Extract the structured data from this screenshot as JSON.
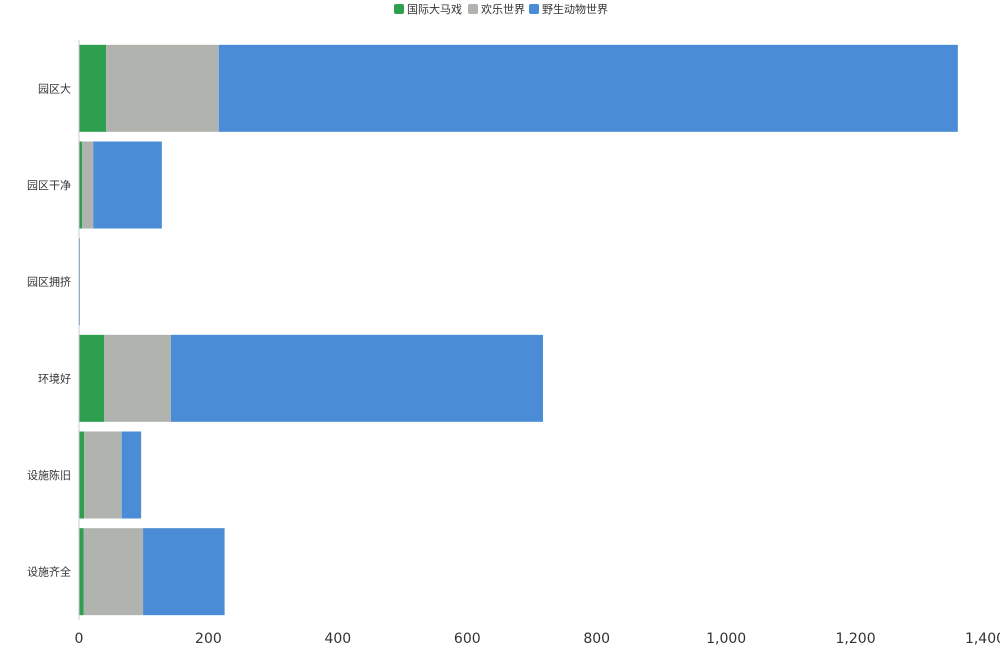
{
  "chart_data": {
    "type": "bar",
    "orientation": "horizontal",
    "stacked": true,
    "categories": [
      "园区大",
      "园区干净",
      "园区拥挤",
      "环境好",
      "设施陈旧",
      "设施齐全"
    ],
    "series": [
      {
        "name": "国际大马戏",
        "color": "#2e9e4f",
        "values": [
          42,
          5,
          0,
          39,
          8,
          7
        ]
      },
      {
        "name": "欢乐世界",
        "color": "#b1b3ae",
        "values": [
          174,
          17,
          0,
          103,
          58,
          92
        ]
      },
      {
        "name": "野生动物世界",
        "color": "#4a8dd6",
        "values": [
          1142,
          106,
          1,
          575,
          30,
          126
        ]
      }
    ],
    "xlim": [
      0,
      1400
    ],
    "xticks": [
      "0",
      "200",
      "400",
      "600",
      "800",
      "1,000",
      "1,200",
      "1,400"
    ],
    "legend_position": "top-center",
    "grid": false
  }
}
